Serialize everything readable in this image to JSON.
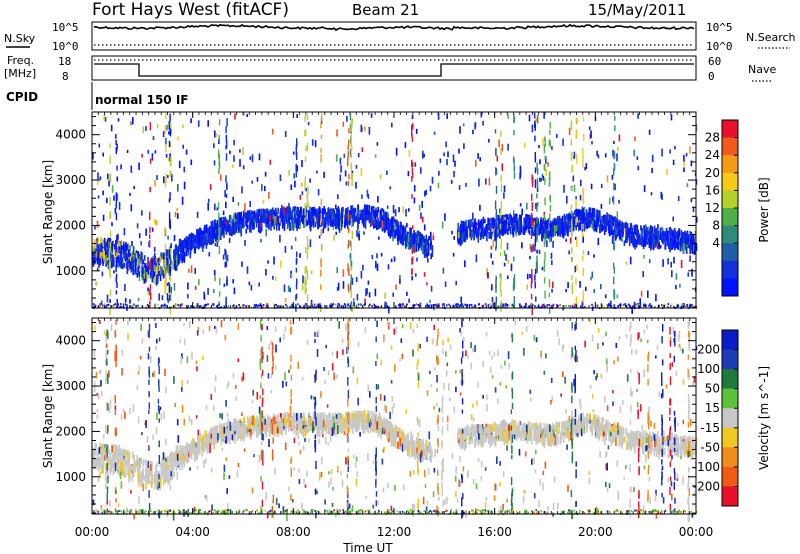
{
  "header": {
    "station": "Fort Hays West (fitACF)",
    "beam": "Beam 21",
    "date": "15/May/2011"
  },
  "noise_panel": {
    "left_label": "N.Sky",
    "right_label": "N.Search",
    "ticks": [
      "10^5",
      "10^0"
    ]
  },
  "freq_panel": {
    "left_label_1": "Freq.",
    "left_label_2": "[MHz]",
    "left_ticks": [
      "18",
      "8"
    ],
    "right_label": "Nave",
    "right_ticks": [
      "60",
      "0"
    ]
  },
  "cpid": {
    "label": "CPID",
    "value": "normal 150 IF"
  },
  "colors": {
    "scatter_fill": "#2b3fc2",
    "ground_scatter": "#c0c0c0",
    "axis": "#000000"
  },
  "chart_data": [
    {
      "type": "heatmap",
      "title": "",
      "ylabel": "Slant Range [km]",
      "xlabel": "",
      "x_ticks": [
        "00:00",
        "04:00",
        "08:00",
        "12:00",
        "16:00",
        "20:00",
        "00:00"
      ],
      "y_ticks": [
        1000,
        2000,
        3000,
        4000
      ],
      "ylim": [
        180,
        4500
      ],
      "xlim_hours": [
        0,
        24
      ],
      "colorbar": {
        "label": "Power [dB]",
        "ticks": [
          "28",
          "24",
          "20",
          "16",
          "12",
          "8",
          "4"
        ],
        "colors": [
          "#e8102a",
          "#f05a1e",
          "#f59a14",
          "#f4c918",
          "#b4d22c",
          "#4fb048",
          "#2f8c7a",
          "#1f5ea8",
          "#1430d8",
          "#0012ff"
        ]
      },
      "echo_band_hours": [
        0,
        0.5,
        1,
        1.5,
        2,
        2.5,
        3,
        3.5,
        4,
        4.5,
        5,
        5.5,
        6,
        6.5,
        7,
        7.5,
        8,
        8.5,
        9,
        9.5,
        10,
        10.5,
        11,
        11.5,
        12,
        12.5,
        13,
        13.5,
        14,
        14.5,
        15,
        15.5,
        16,
        16.5,
        17,
        17.5,
        18,
        18.5,
        19,
        19.5,
        20,
        20.5,
        21,
        21.5,
        22,
        22.5,
        23,
        23.5,
        24
      ],
      "echo_band_range_km": [
        1500,
        1500,
        1450,
        1350,
        1150,
        1080,
        1250,
        1500,
        1700,
        1850,
        2000,
        2100,
        2150,
        2200,
        2200,
        2250,
        2250,
        2250,
        2250,
        2250,
        2250,
        2300,
        2300,
        2200,
        2000,
        1800,
        1700,
        1600,
        null,
        1900,
        2000,
        2000,
        2050,
        2100,
        2100,
        2050,
        2000,
        2050,
        2150,
        2250,
        2200,
        2100,
        1950,
        1850,
        1850,
        1800,
        1800,
        1750,
        1700
      ]
    },
    {
      "type": "heatmap",
      "title": "",
      "ylabel": "Slant Range [km]",
      "xlabel": "Time UT",
      "x_ticks": [
        "00:00",
        "04:00",
        "08:00",
        "12:00",
        "16:00",
        "20:00",
        "00:00"
      ],
      "y_ticks": [
        1000,
        2000,
        3000,
        4000
      ],
      "ylim": [
        180,
        4500
      ],
      "xlim_hours": [
        0,
        24
      ],
      "colorbar": {
        "label": "Velocity [m s^-1]",
        "ticks": [
          "200",
          "100",
          "50",
          "15",
          "-15",
          "-50",
          "-100",
          "-200"
        ],
        "colors": [
          "#0a1ec8",
          "#1e3cb4",
          "#1f7a3c",
          "#5cc23a",
          "#c8c8c8",
          "#f0c820",
          "#f08c1e",
          "#f05a14",
          "#e8102a"
        ]
      }
    }
  ]
}
